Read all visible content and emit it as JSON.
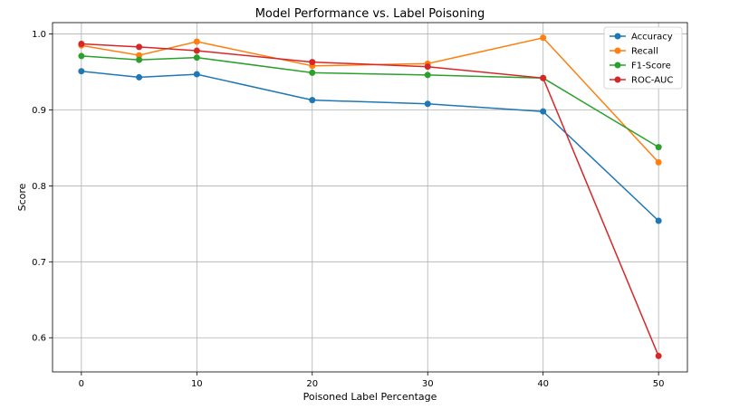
{
  "chart_data": {
    "type": "line",
    "title": "Model Performance vs. Label Poisoning",
    "xlabel": "Poisoned Label Percentage",
    "ylabel": "Score",
    "x": [
      0,
      5,
      10,
      20,
      30,
      40,
      50
    ],
    "xticks": [
      0,
      10,
      20,
      30,
      40,
      50
    ],
    "yticks": [
      0.6,
      0.7,
      0.8,
      0.9,
      1.0
    ],
    "xlim": [
      -2.5,
      52.5
    ],
    "ylim": [
      0.555,
      1.015
    ],
    "grid": true,
    "legend_position": "top-right",
    "series": [
      {
        "name": "Accuracy",
        "color": "#1f77b4",
        "values": [
          0.951,
          0.943,
          0.947,
          0.913,
          0.908,
          0.898,
          0.754
        ]
      },
      {
        "name": "Recall",
        "color": "#ff7f0e",
        "values": [
          0.985,
          0.972,
          0.99,
          0.958,
          0.961,
          0.995,
          0.831
        ]
      },
      {
        "name": "F1-Score",
        "color": "#2ca02c",
        "values": [
          0.971,
          0.966,
          0.969,
          0.949,
          0.946,
          0.942,
          0.851
        ]
      },
      {
        "name": "ROC-AUC",
        "color": "#d62728",
        "values": [
          0.987,
          0.983,
          0.978,
          0.963,
          0.957,
          0.942,
          0.576
        ]
      }
    ]
  }
}
